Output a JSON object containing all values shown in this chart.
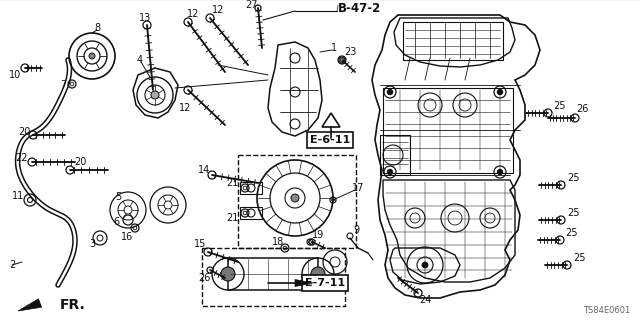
{
  "bg_color": "#ffffff",
  "diagram_code": "TS84E0601",
  "ref_b47_2": "B-47-2",
  "ref_e611": "E-6-11",
  "ref_e711": "E-7-11",
  "fr_label": "FR.",
  "fig_width": 6.4,
  "fig_height": 3.2,
  "dpi": 100,
  "text_color": "#111111",
  "line_color": "#111111"
}
